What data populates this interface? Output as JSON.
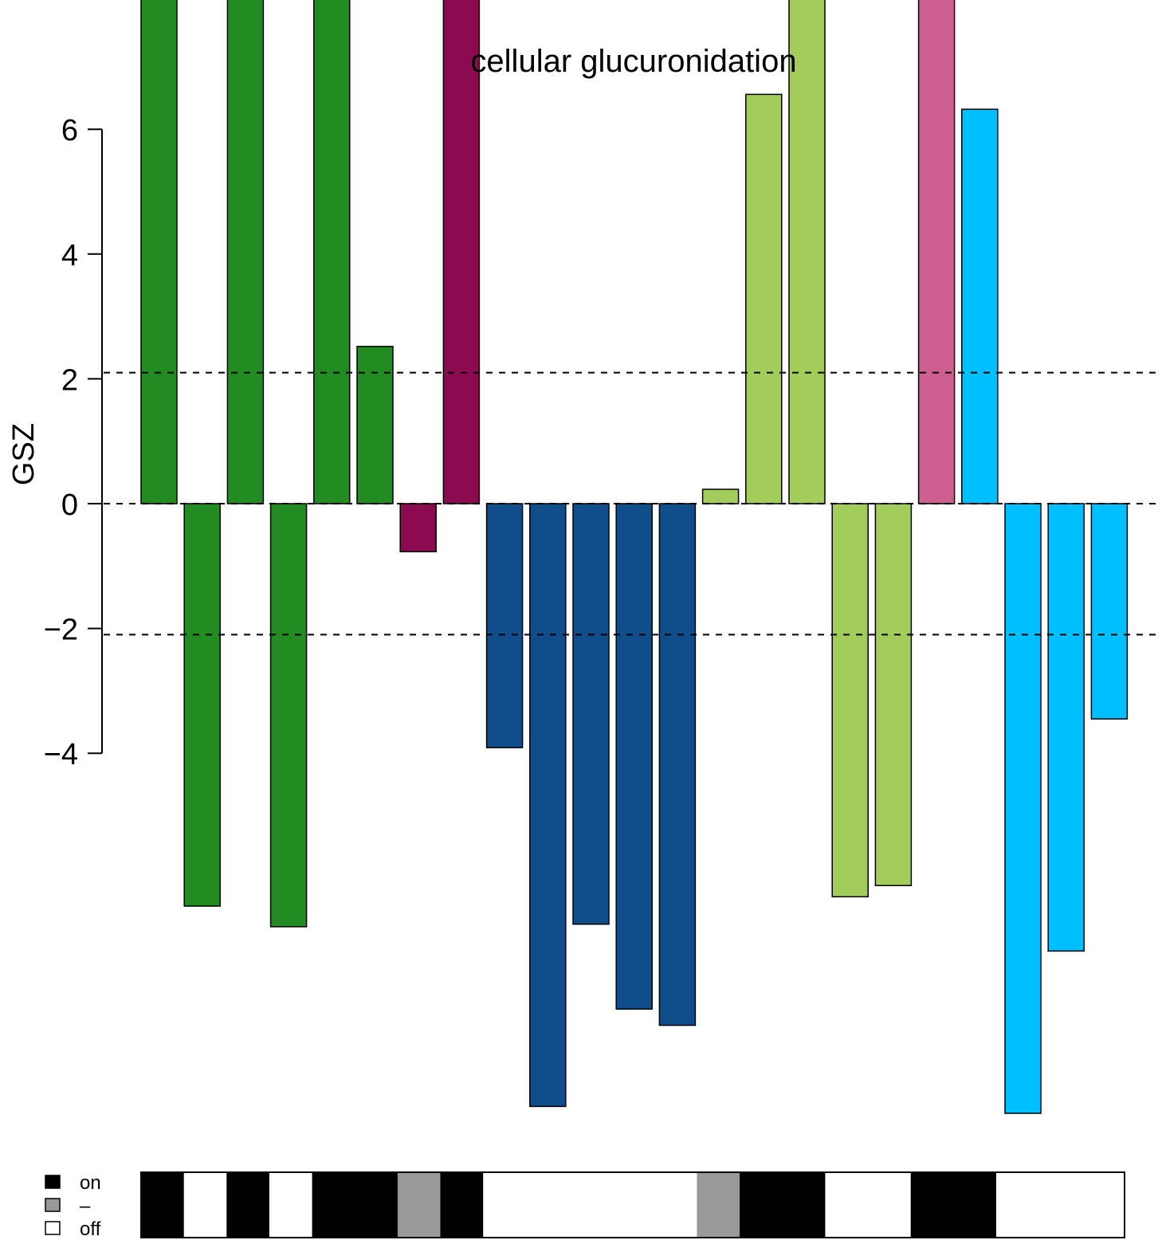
{
  "chart_data": {
    "type": "bar",
    "title": "cellular glucuronidation",
    "xlabel": "",
    "ylabel": "GSZ",
    "yticks": [
      -4,
      -2,
      0,
      2,
      4,
      6
    ],
    "ytick_labels": [
      "−4",
      "−2",
      "0",
      "2",
      "4",
      "6"
    ],
    "ylim": [
      -9.9,
      8.1
    ],
    "threshold_lines": [
      2.1,
      0,
      -2.1
    ],
    "colors": {
      "dark_green": "#228B22",
      "maroon": "#8B0A50",
      "navy": "#104E8B",
      "light_green": "#A2CD5A",
      "pink": "#CD6090",
      "sky_blue": "#00BFFF"
    },
    "bars": [
      {
        "value": 8.5,
        "color": "#228B22"
      },
      {
        "value": -6.45,
        "color": "#228B22"
      },
      {
        "value": 8.5,
        "color": "#228B22"
      },
      {
        "value": -6.78,
        "color": "#228B22"
      },
      {
        "value": 8.5,
        "color": "#228B22"
      },
      {
        "value": 2.52,
        "color": "#228B22"
      },
      {
        "value": -0.77,
        "color": "#8B0A50"
      },
      {
        "value": 8.5,
        "color": "#8B0A50"
      },
      {
        "value": -3.91,
        "color": "#104E8B"
      },
      {
        "value": -9.66,
        "color": "#104E8B"
      },
      {
        "value": -6.74,
        "color": "#104E8B"
      },
      {
        "value": -8.1,
        "color": "#104E8B"
      },
      {
        "value": -8.36,
        "color": "#104E8B"
      },
      {
        "value": 0.23,
        "color": "#A2CD5A"
      },
      {
        "value": 6.56,
        "color": "#A2CD5A"
      },
      {
        "value": 8.5,
        "color": "#A2CD5A"
      },
      {
        "value": -6.3,
        "color": "#A2CD5A"
      },
      {
        "value": -6.12,
        "color": "#A2CD5A"
      },
      {
        "value": 8.5,
        "color": "#CD6090"
      },
      {
        "value": 6.32,
        "color": "#00BFFF"
      },
      {
        "value": -9.77,
        "color": "#00BFFF"
      },
      {
        "value": -7.17,
        "color": "#00BFFF"
      },
      {
        "value": -3.45,
        "color": "#00BFFF"
      }
    ],
    "status_strip": [
      "on",
      "off",
      "on",
      "off",
      "on",
      "on",
      "-",
      "on",
      "off",
      "off",
      "off",
      "off",
      "off",
      "-",
      "on",
      "on",
      "off",
      "off",
      "on",
      "on",
      "off",
      "off",
      "off"
    ],
    "legend": {
      "placement": "bottom-left",
      "entries": [
        {
          "label": "on",
          "color": "#000000"
        },
        {
          "label": "–",
          "color": "#999999"
        },
        {
          "label": "off",
          "color": "#ffffff"
        }
      ]
    }
  }
}
